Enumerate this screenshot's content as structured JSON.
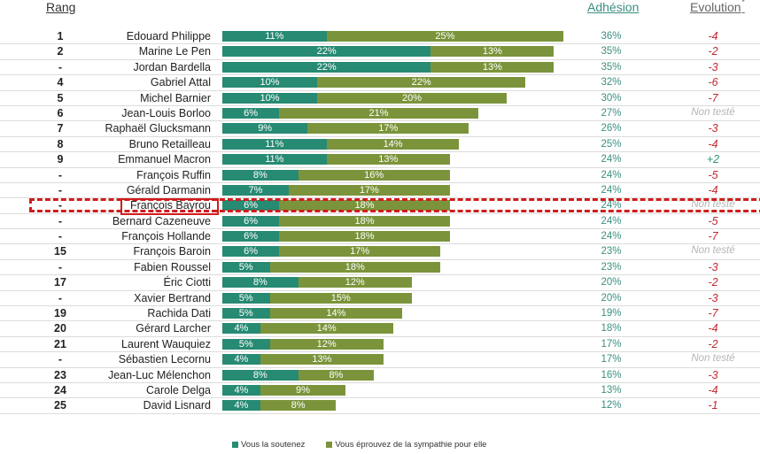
{
  "headers": {
    "rank": "Rang",
    "adhesion": "Adhésion",
    "evolution": "Evolution",
    "evolution_mark": "*"
  },
  "colors": {
    "soutenez": "#278a73",
    "sympathie": "#7b943b",
    "negative": "#c0272d",
    "positive": "#2f8f75",
    "not_tested": "#b5b5b5",
    "highlight": "#d01c1c"
  },
  "highlighted_name": "François Bayrou",
  "chart_data": {
    "type": "bar",
    "orientation": "horizontal",
    "stacked": true,
    "title": "",
    "xlabel": "",
    "ylabel": "",
    "xlim": [
      0,
      36
    ],
    "legend_position": "bottom",
    "categories": [
      "Edouard Philippe",
      "Marine Le Pen",
      "Jordan Bardella",
      "Gabriel Attal",
      "Michel Barnier",
      "Jean-Louis Borloo",
      "Raphaël Glucksmann",
      "Bruno Retailleau",
      "Emmanuel Macron",
      "François Ruffin",
      "Gérald Darmanin",
      "François Bayrou",
      "Bernard Cazeneuve",
      "François Hollande",
      "François Baroin",
      "Fabien Roussel",
      "Éric Ciotti",
      "Xavier Bertrand",
      "Rachida Dati",
      "Gérard Larcher",
      "Laurent Wauquiez",
      "Sébastien Lecornu",
      "Jean-Luc Mélenchon",
      "Carole Delga",
      "David Lisnard"
    ],
    "ranks": [
      "1",
      "2",
      "-",
      "4",
      "5",
      "6",
      "7",
      "8",
      "9",
      "-",
      "-",
      "-",
      "-",
      "-",
      "15",
      "-",
      "17",
      "-",
      "19",
      "20",
      "21",
      "-",
      "23",
      "24",
      "25"
    ],
    "series": [
      {
        "name": "Vous la soutenez",
        "values": [
          11,
          22,
          22,
          10,
          10,
          6,
          9,
          11,
          11,
          8,
          7,
          6,
          6,
          6,
          6,
          5,
          8,
          5,
          5,
          4,
          5,
          4,
          8,
          4,
          4
        ]
      },
      {
        "name": "Vous éprouvez de la sympathie pour elle",
        "values": [
          25,
          13,
          13,
          22,
          20,
          21,
          17,
          14,
          13,
          16,
          17,
          18,
          18,
          18,
          17,
          18,
          12,
          15,
          14,
          14,
          12,
          13,
          8,
          9,
          8
        ]
      }
    ],
    "adhesion": [
      "36%",
      "35%",
      "35%",
      "32%",
      "30%",
      "27%",
      "26%",
      "25%",
      "24%",
      "24%",
      "24%",
      "24%",
      "24%",
      "24%",
      "23%",
      "23%",
      "20%",
      "20%",
      "19%",
      "18%",
      "17%",
      "17%",
      "16%",
      "13%",
      "12%"
    ],
    "evolution": [
      "-4",
      "-2",
      "-3",
      "-6",
      "-7",
      "Non testé",
      "-3",
      "-4",
      "+2",
      "-5",
      "-4",
      "Non testé",
      "-5",
      "-7",
      "Non testé",
      "-3",
      "-2",
      "-3",
      "-7",
      "-4",
      "-2",
      "Non testé",
      "-3",
      "-4",
      "-1"
    ]
  }
}
